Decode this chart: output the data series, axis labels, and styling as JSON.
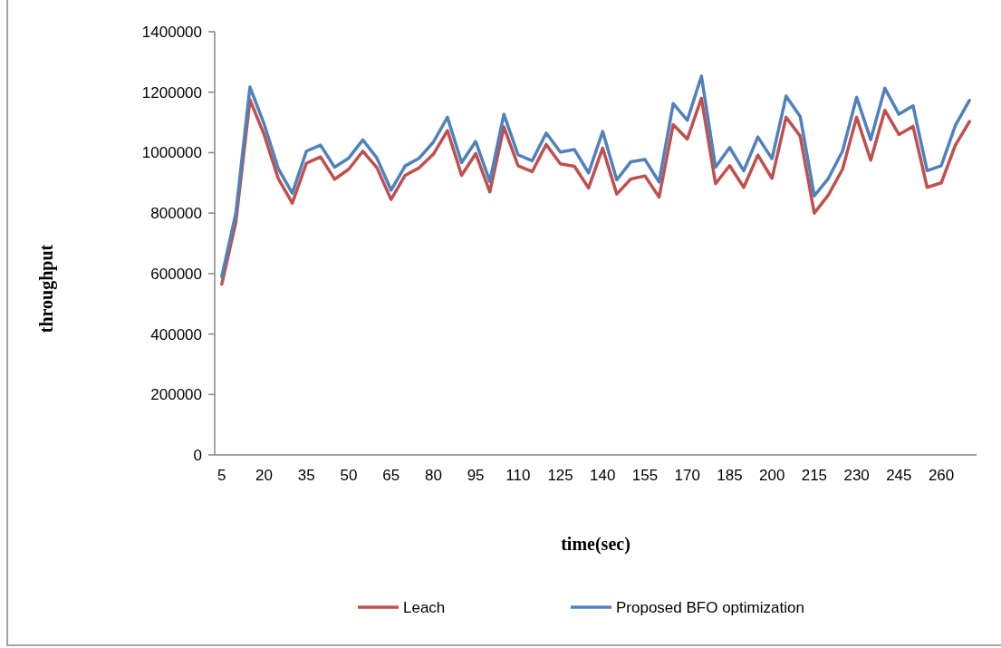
{
  "chart_data": {
    "type": "line",
    "xlabel": "time(sec)",
    "ylabel": "throughput",
    "categories": [
      "5",
      null,
      null,
      "20",
      null,
      null,
      "35",
      null,
      null,
      "50",
      null,
      null,
      "65",
      null,
      null,
      "80",
      null,
      null,
      "95",
      null,
      null,
      "110",
      null,
      null,
      "125",
      null,
      null,
      "140",
      null,
      null,
      "155",
      null,
      null,
      "170",
      null,
      null,
      "185",
      null,
      null,
      "200",
      null,
      null,
      "215",
      null,
      null,
      "230",
      null,
      null,
      "245",
      null,
      null,
      "260",
      null,
      null
    ],
    "series": [
      {
        "name": "Leach",
        "color": "#c0504d",
        "values": [
          565000,
          770000,
          1175000,
          1060000,
          915000,
          833000,
          965000,
          986000,
          912000,
          945000,
          1005000,
          950000,
          845000,
          925000,
          950000,
          995000,
          1073000,
          925000,
          997000,
          870000,
          1085000,
          957000,
          937000,
          1027000,
          963000,
          955000,
          883000,
          1015000,
          863000,
          913000,
          923000,
          853000,
          1093000,
          1045000,
          1180000,
          897000,
          957000,
          885000,
          992000,
          915000,
          1117000,
          1055000,
          800000,
          860000,
          945000,
          1117000,
          975000,
          1140000,
          1060000,
          1087000,
          885000,
          900000,
          1025000,
          1103000
        ]
      },
      {
        "name": "Proposed BFO optimization",
        "color": "#4f81bd",
        "values": [
          590000,
          800000,
          1217000,
          1095000,
          948000,
          866000,
          1005000,
          1025000,
          952000,
          982000,
          1042000,
          982000,
          876000,
          956000,
          982000,
          1035000,
          1117000,
          967000,
          1037000,
          905000,
          1127000,
          993000,
          973000,
          1065000,
          1002000,
          1010000,
          933000,
          1070000,
          910000,
          970000,
          977000,
          903000,
          1162000,
          1107000,
          1253000,
          952000,
          1017000,
          940000,
          1052000,
          980000,
          1187000,
          1120000,
          857000,
          915000,
          1005000,
          1183000,
          1043000,
          1213000,
          1127000,
          1155000,
          940000,
          957000,
          1090000,
          1173000
        ]
      }
    ],
    "ylim": [
      0,
      1400000
    ],
    "yticks": [
      0,
      200000,
      400000,
      600000,
      800000,
      1000000,
      1200000,
      1400000
    ],
    "grid": false,
    "legend": "bottom",
    "marker": "none",
    "line_style": "solid"
  }
}
